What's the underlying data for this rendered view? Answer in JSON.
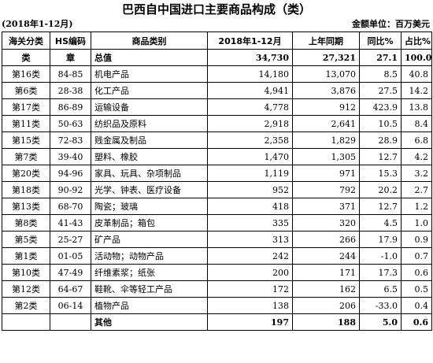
{
  "title": "巴西自中国进口主要商品构成（类）",
  "period": "(2018年1-12月)",
  "unit": "金额单位：百万美元",
  "headers": [
    "海关分类",
    "HS编码",
    "商品类别",
    "2018年1-12月",
    "上年同期",
    "同比%",
    "占比%"
  ],
  "total": {
    "cls": "类",
    "hs": "章",
    "name": "总值",
    "v2018": "34,730",
    "prev": "27,321",
    "yoy": "27.1",
    "share": "100.0"
  },
  "rows": [
    {
      "cls": "第16类",
      "hs": "84-85",
      "name": "机电产品",
      "v2018": "14,180",
      "prev": "13,070",
      "yoy": "8.5",
      "share": "40.8"
    },
    {
      "cls": "第6类",
      "hs": "28-38",
      "name": "化工产品",
      "v2018": "4,941",
      "prev": "3,876",
      "yoy": "27.5",
      "share": "14.2"
    },
    {
      "cls": "第17类",
      "hs": "86-89",
      "name": "运输设备",
      "v2018": "4,778",
      "prev": "912",
      "yoy": "423.9",
      "share": "13.8"
    },
    {
      "cls": "第11类",
      "hs": "50-63",
      "name": "纺织品及原料",
      "v2018": "2,918",
      "prev": "2,641",
      "yoy": "10.5",
      "share": "8.4"
    },
    {
      "cls": "第15类",
      "hs": "72-83",
      "name": "贱金属及制品",
      "v2018": "2,358",
      "prev": "1,829",
      "yoy": "28.9",
      "share": "6.8"
    },
    {
      "cls": "第7类",
      "hs": "39-40",
      "name": "塑料、橡胶",
      "v2018": "1,470",
      "prev": "1,305",
      "yoy": "12.7",
      "share": "4.2"
    },
    {
      "cls": "第20类",
      "hs": "94-96",
      "name": "家具、玩具、杂项制品",
      "v2018": "1,119",
      "prev": "971",
      "yoy": "15.3",
      "share": "3.2"
    },
    {
      "cls": "第18类",
      "hs": "90-92",
      "name": "光学、钟表、医疗设备",
      "v2018": "952",
      "prev": "792",
      "yoy": "20.2",
      "share": "2.7"
    },
    {
      "cls": "第13类",
      "hs": "68-70",
      "name": "陶瓷；玻璃",
      "v2018": "418",
      "prev": "371",
      "yoy": "12.7",
      "share": "1.2"
    },
    {
      "cls": "第8类",
      "hs": "41-43",
      "name": "皮革制品；箱包",
      "v2018": "335",
      "prev": "320",
      "yoy": "4.5",
      "share": "1.0"
    },
    {
      "cls": "第5类",
      "hs": "25-27",
      "name": "矿产品",
      "v2018": "313",
      "prev": "266",
      "yoy": "17.9",
      "share": "0.9"
    },
    {
      "cls": "第1类",
      "hs": "01-05",
      "name": "活动物；动物产品",
      "v2018": "242",
      "prev": "244",
      "yoy": "-1.0",
      "share": "0.7"
    },
    {
      "cls": "第10类",
      "hs": "47-49",
      "name": "纤维素浆；纸张",
      "v2018": "200",
      "prev": "171",
      "yoy": "17.3",
      "share": "0.6"
    },
    {
      "cls": "第12类",
      "hs": "64-67",
      "name": "鞋靴、伞等轻工产品",
      "v2018": "172",
      "prev": "162",
      "yoy": "6.5",
      "share": "0.5"
    },
    {
      "cls": "第2类",
      "hs": "06-14",
      "name": "植物产品",
      "v2018": "138",
      "prev": "206",
      "yoy": "-33.0",
      "share": "0.4"
    }
  ],
  "other": {
    "cls": "",
    "hs": "",
    "name": "其他",
    "v2018": "197",
    "prev": "188",
    "yoy": "5.0",
    "share": "0.6"
  }
}
